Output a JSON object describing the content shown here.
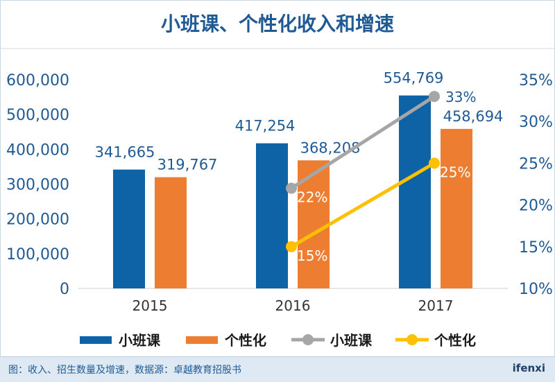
{
  "chart_data": {
    "type": "bar",
    "title": "小班课、个性化收入和增速",
    "categories": [
      "2015",
      "2016",
      "2017"
    ],
    "series": [
      {
        "name": "小班课",
        "kind": "bar",
        "axis": "left",
        "color": "#0e63a6",
        "values": [
          341665,
          417254,
          554769
        ],
        "labels": [
          "341,665",
          "417,254",
          "554,769"
        ]
      },
      {
        "name": "个性化",
        "kind": "bar",
        "axis": "left",
        "color": "#ed7d31",
        "values": [
          319767,
          368208,
          458694
        ],
        "labels": [
          "319,767",
          "368,208",
          "458,694"
        ]
      },
      {
        "name": "小班课",
        "kind": "line",
        "axis": "right",
        "color": "#a6a6a6",
        "values": [
          null,
          22,
          33
        ],
        "labels": [
          "",
          "22%",
          "33%"
        ]
      },
      {
        "name": "个性化",
        "kind": "line",
        "axis": "right",
        "color": "#ffc000",
        "values": [
          null,
          15,
          25
        ],
        "labels": [
          "",
          "15%",
          "25%"
        ]
      }
    ],
    "left_axis": {
      "min": 0,
      "max": 600000,
      "ticks": [
        0,
        100000,
        200000,
        300000,
        400000,
        500000,
        600000
      ],
      "tick_labels": [
        "0",
        "100,000",
        "200,000",
        "300,000",
        "400,000",
        "500,000",
        "600,000"
      ]
    },
    "right_axis": {
      "min": 10,
      "max": 35,
      "ticks": [
        10,
        15,
        20,
        25,
        30,
        35
      ],
      "tick_labels": [
        "10%",
        "15%",
        "20%",
        "25%",
        "30%",
        "35%"
      ]
    },
    "grid": false,
    "legend_position": "bottom"
  },
  "footer": {
    "source": "图：收入、招生数量及增速，数据源：卓越教育招股书",
    "brand": "ifenxi"
  }
}
